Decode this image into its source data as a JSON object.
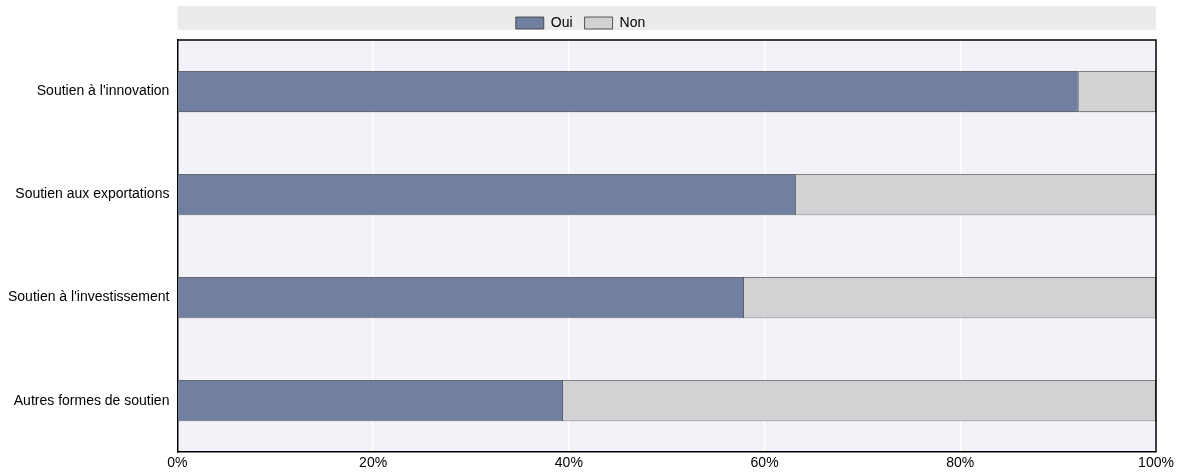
{
  "chart_data": {
    "type": "bar",
    "orientation": "horizontal",
    "stacked": true,
    "categories": [
      "Soutien à l'innovation",
      "Soutien aux exportations",
      "Soutien à l'investissement",
      "Autres formes de soutien"
    ],
    "series": [
      {
        "name": "Oui",
        "color": "#717fa1",
        "values": [
          92.1,
          63.2,
          57.9,
          39.4
        ]
      },
      {
        "name": "Non",
        "color": "#d1d2d4",
        "values": [
          7.9,
          36.8,
          42.1,
          60.6
        ]
      }
    ],
    "xlim": [
      0,
      100
    ],
    "xticks": [
      {
        "value": 0,
        "label": "0%"
      },
      {
        "value": 20,
        "label": "20%"
      },
      {
        "value": 40,
        "label": "40%"
      },
      {
        "value": 60,
        "label": "60%"
      },
      {
        "value": 80,
        "label": "80%"
      },
      {
        "value": 100,
        "label": "100%"
      }
    ],
    "grid": "x",
    "legend": "top"
  }
}
